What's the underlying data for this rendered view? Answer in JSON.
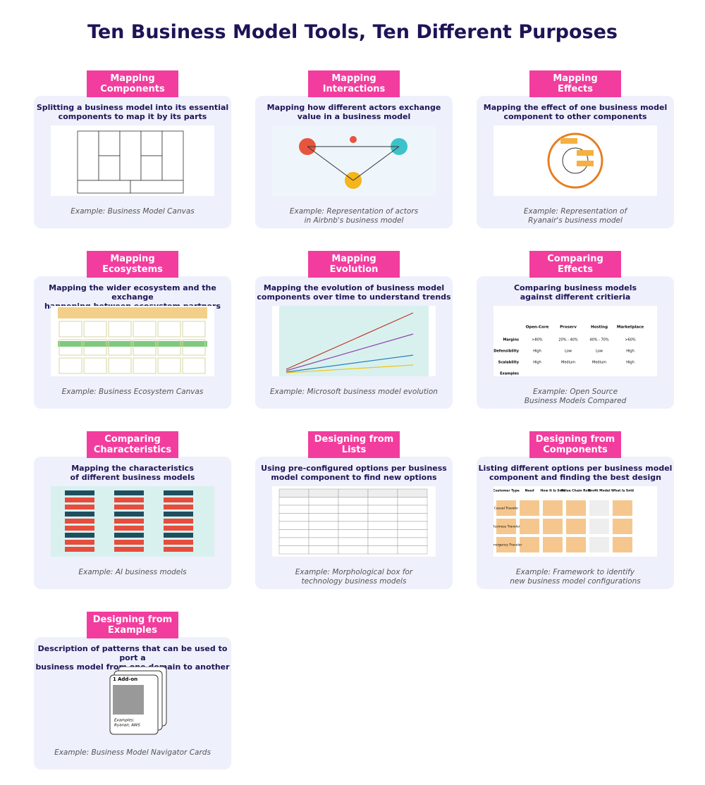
{
  "title": "Ten Business Model Tools, Ten Different Purposes",
  "cards": [
    {
      "tag": [
        "Mapping",
        "Components"
      ],
      "description": [
        "Splitting a business model into its essential",
        "components to map it by its parts"
      ],
      "example": [
        "Example: Business Model Canvas"
      ]
    },
    {
      "tag": [
        "Mapping",
        "Interactions"
      ],
      "description": [
        "Mapping how different actors exchange",
        "value in a business model"
      ],
      "example": [
        "Example: Representation of actors",
        "in Airbnb's business model"
      ]
    },
    {
      "tag": [
        "Mapping",
        "Effects"
      ],
      "description": [
        "Mapping the effect of one business model",
        "component to other components"
      ],
      "example": [
        "Example: Representation of",
        "Ryanair's business model"
      ]
    },
    {
      "tag": [
        "Mapping",
        "Ecosystems"
      ],
      "description": [
        "Mapping the wider ecosystem and the exchange",
        "happening between ecosystem partners"
      ],
      "example": [
        "Example: Business Ecosystem Canvas"
      ]
    },
    {
      "tag": [
        "Mapping",
        "Evolution"
      ],
      "description": [
        "Mapping the evolution of business model",
        "components over time to understand trends"
      ],
      "example": [
        "Example: Microsoft business model evolution"
      ]
    },
    {
      "tag": [
        "Comparing",
        "Effects"
      ],
      "description": [
        "Comparing business models",
        "against different critieria"
      ],
      "example": [
        "Example: Open Source",
        "Business Models Compared"
      ],
      "figure": {
        "columns": [
          "Open-Core",
          "Proserv",
          "Hosting",
          "Marketplace"
        ],
        "rows": [
          {
            "label": "Margins",
            "cells": [
              ">80%",
              "20% - 40%",
              "40% - 70%",
              ">60%"
            ]
          },
          {
            "label": "Defensibility",
            "cells": [
              "High",
              "Low",
              "Low",
              "High"
            ]
          },
          {
            "label": "Scalability",
            "cells": [
              "High",
              "Medium",
              "Medium",
              "High"
            ]
          },
          {
            "label": "Examples",
            "cells": []
          }
        ]
      }
    },
    {
      "tag": [
        "Comparing",
        "Characteristics"
      ],
      "description": [
        "Mapping the characteristics",
        "of different business models"
      ],
      "example": [
        "Example: AI business models"
      ]
    },
    {
      "tag": [
        "Designing from",
        "Lists"
      ],
      "description": [
        "Using pre-configured options per business",
        "model component to find new options"
      ],
      "example": [
        "Example: Morphological box for",
        "technology business models"
      ]
    },
    {
      "tag": [
        "Designing from",
        "Components"
      ],
      "description": [
        "Listing different options per business model",
        "component and finding the best design"
      ],
      "example": [
        "Example: Framework to identify",
        "new business model configurations"
      ],
      "figure": {
        "headers": [
          "Customer Type",
          "Need",
          "How It Is Sold",
          "Value Chain Role",
          "Profit Model",
          "What Is Sold"
        ],
        "first_column": [
          "Casual Traveler",
          "Business Traveler",
          "Emergency Traveler"
        ]
      }
    },
    {
      "tag": [
        "Designing from",
        "Examples"
      ],
      "description": [
        "Description of patterns that can be used to port a",
        "business model from one domain to another"
      ],
      "example": [
        "Example: Business Model Navigator Cards"
      ],
      "figure": {
        "number": "1",
        "name": "Add-on",
        "examples": [
          "Examples:",
          "Ryanair, AWS"
        ]
      }
    }
  ]
}
